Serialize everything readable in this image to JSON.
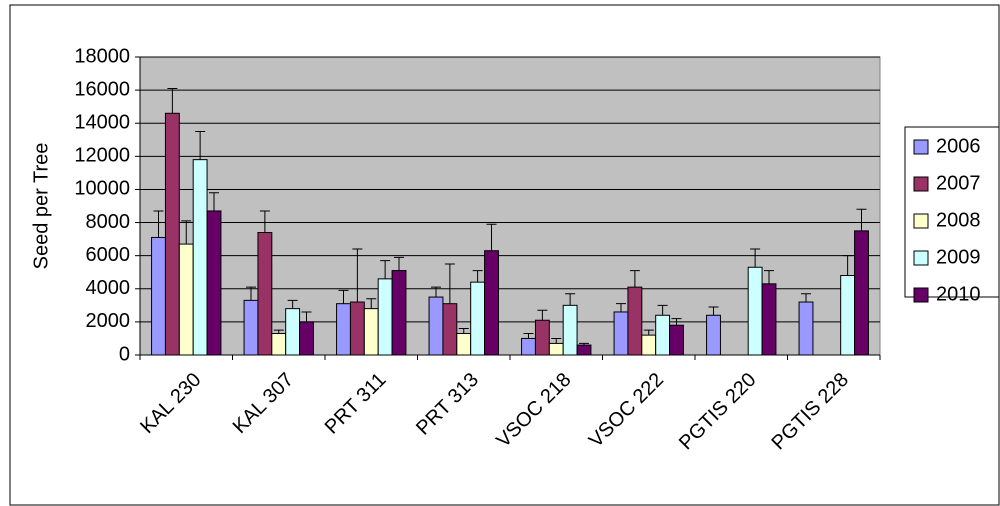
{
  "chart_data": {
    "type": "bar",
    "ylabel": "Seed per Tree",
    "categories": [
      "KAL 230",
      "KAL 307",
      "PRT 311",
      "PRT 313",
      "VSOC 218",
      "VSOC 222",
      "PGTIS 220",
      "PGTIS 228"
    ],
    "series": [
      {
        "name": "2006",
        "color": "#9999ff",
        "values": [
          7100,
          3300,
          3100,
          3500,
          1000,
          2600,
          2400,
          3200
        ],
        "errors": [
          1600,
          800,
          800,
          600,
          300,
          500,
          500,
          500
        ]
      },
      {
        "name": "2007",
        "color": "#993366",
        "values": [
          14600,
          7400,
          3200,
          3100,
          2100,
          4100,
          null,
          null
        ],
        "errors": [
          1500,
          1300,
          3200,
          2400,
          600,
          1000,
          null,
          null
        ]
      },
      {
        "name": "2008",
        "color": "#ffffcc",
        "values": [
          6700,
          1300,
          2800,
          1300,
          700,
          1200,
          null,
          null
        ],
        "errors": [
          1400,
          200,
          600,
          300,
          300,
          300,
          null,
          null
        ]
      },
      {
        "name": "2009",
        "color": "#ccffff",
        "values": [
          11800,
          2800,
          4600,
          4400,
          3000,
          2400,
          5300,
          4800
        ],
        "errors": [
          1700,
          500,
          1100,
          700,
          700,
          600,
          1100,
          1200
        ]
      },
      {
        "name": "2010",
        "color": "#660066",
        "values": [
          8700,
          2000,
          5100,
          6300,
          600,
          1800,
          4300,
          7500
        ],
        "errors": [
          1100,
          600,
          800,
          1600,
          100,
          400,
          800,
          1300
        ]
      }
    ],
    "ylim": [
      0,
      18000
    ],
    "yticks": [
      0,
      2000,
      4000,
      6000,
      8000,
      10000,
      12000,
      14000,
      16000,
      18000
    ],
    "grid": true,
    "legend": "right",
    "plot_background": "#c0c0c0"
  }
}
